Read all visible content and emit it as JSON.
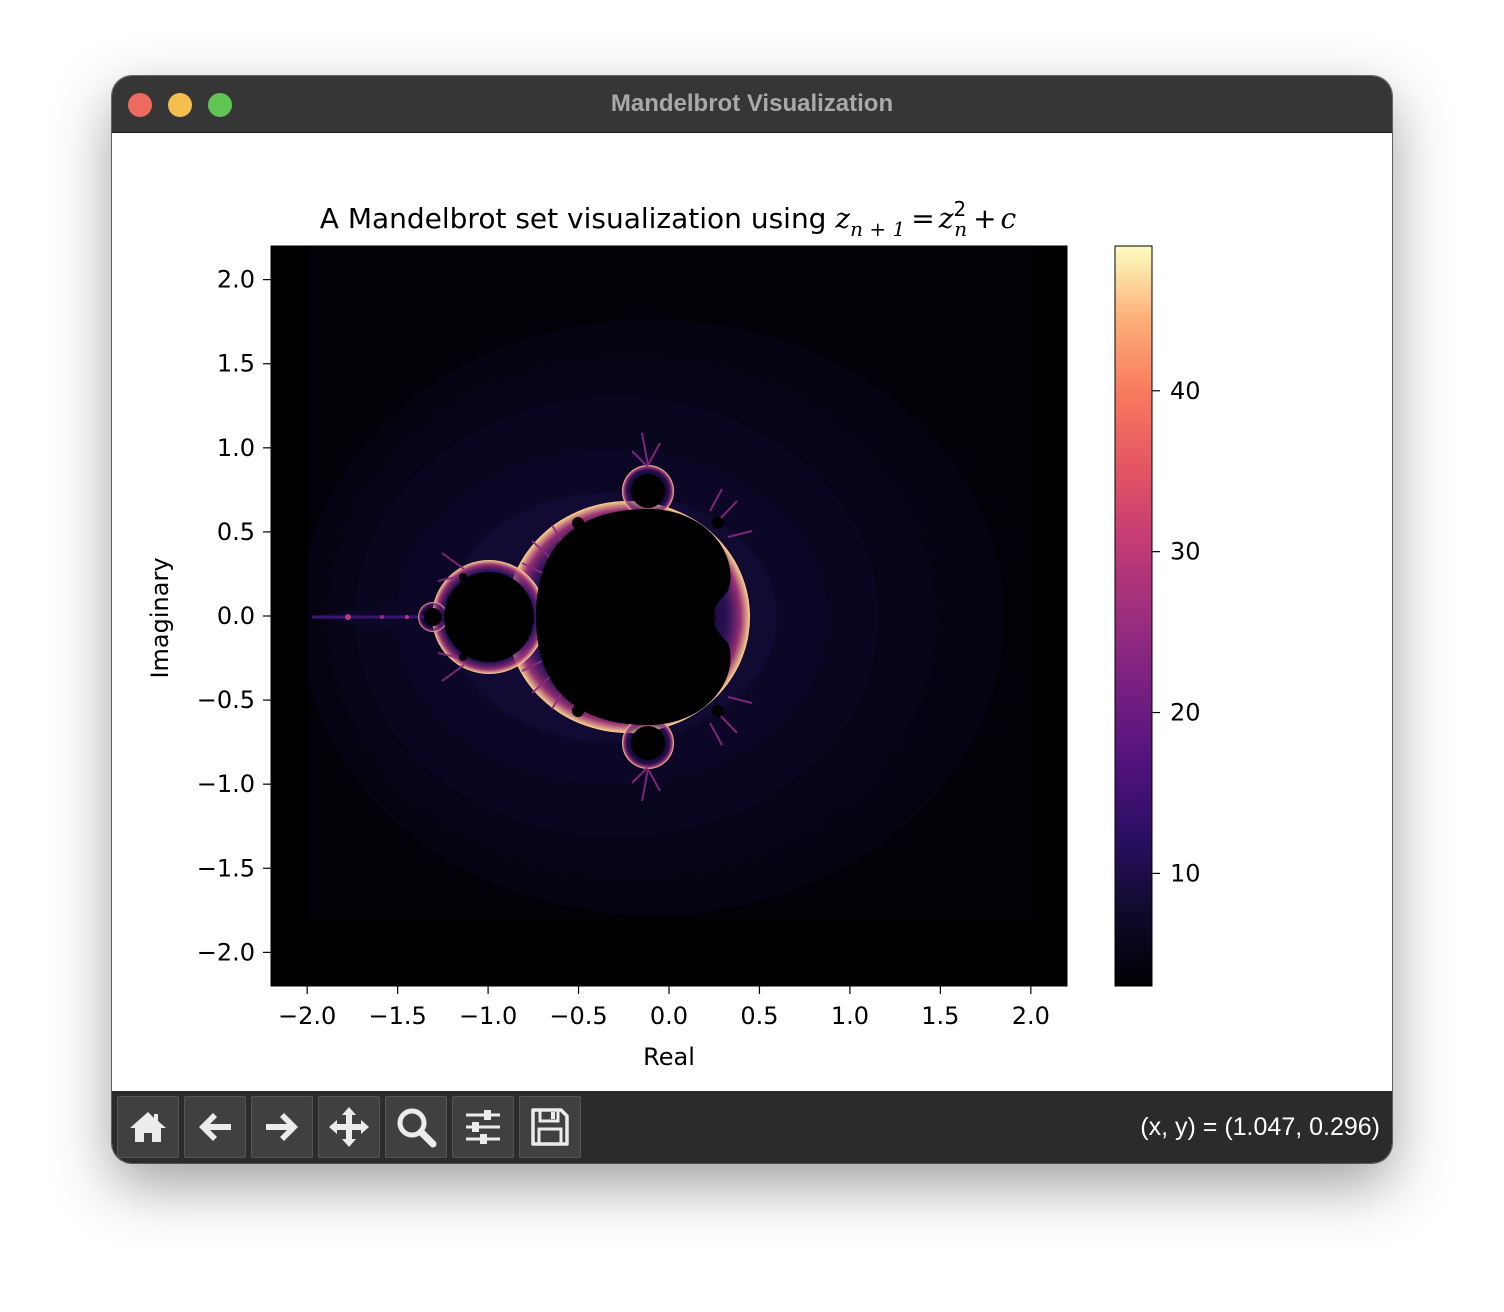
{
  "window": {
    "title": "Mandelbrot Visualization"
  },
  "toolbar": {
    "buttons": [
      {
        "name": "home",
        "icon": "home-icon"
      },
      {
        "name": "back",
        "icon": "arrow-left-icon"
      },
      {
        "name": "forward",
        "icon": "arrow-right-icon"
      },
      {
        "name": "pan",
        "icon": "move-icon"
      },
      {
        "name": "zoom",
        "icon": "magnifier-icon"
      },
      {
        "name": "configure-subplots",
        "icon": "sliders-icon"
      },
      {
        "name": "save",
        "icon": "floppy-disk-icon"
      }
    ],
    "coords": "(x, y) = (1.047, 0.296)"
  },
  "chart_data": {
    "type": "heatmap",
    "title": "A Mandelbrot set visualization using z_{n+1} = z_n^2 + c",
    "title_text": "A Mandelbrot set visualization using",
    "title_math": {
      "z": "z",
      "n1": "n + 1",
      "eq": "=",
      "n": "n",
      "sq": "2",
      "plus": "+",
      "c": "c"
    },
    "xlabel": "Real",
    "ylabel": "Imaginary",
    "xlim": [
      -2.2,
      2.2
    ],
    "ylim": [
      -2.2,
      2.2
    ],
    "xticks": [
      -2.0,
      -1.5,
      -1.0,
      -0.5,
      0.0,
      0.5,
      1.0,
      1.5,
      2.0
    ],
    "xtick_labels": [
      "−2.0",
      "−1.5",
      "−1.0",
      "−0.5",
      "0.0",
      "0.5",
      "1.0",
      "1.5",
      "2.0"
    ],
    "yticks": [
      2.0,
      1.5,
      1.0,
      0.5,
      0.0,
      -0.5,
      -1.0,
      -1.5,
      -2.0
    ],
    "ytick_labels": [
      "2.0",
      "1.5",
      "1.0",
      "0.5",
      "0.0",
      "−0.5",
      "−1.0",
      "−1.5",
      "−2.0"
    ],
    "data_extent": {
      "x": [
        -2.0,
        2.0
      ],
      "y": [
        -2.0,
        2.0
      ]
    },
    "colormap": "magma",
    "colorbar": {
      "range": [
        3,
        49
      ],
      "ticks": [
        10,
        20,
        30,
        40
      ],
      "tick_labels": [
        "10",
        "20",
        "30",
        "40"
      ]
    },
    "grid": false
  }
}
